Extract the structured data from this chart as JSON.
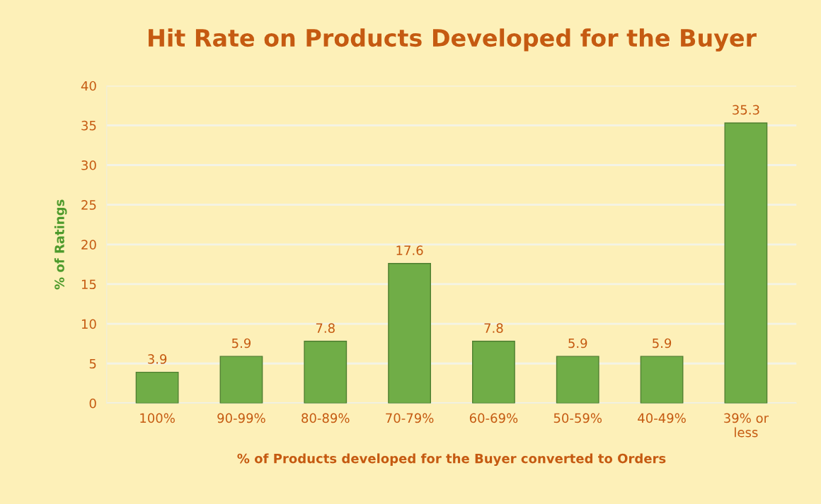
{
  "chart_data": {
    "type": "bar",
    "title": "Hit Rate on Products Developed for the Buyer",
    "xlabel": "% of Products developed for the Buyer converted to Orders",
    "ylabel": "% of Ratings",
    "categories": [
      "100%",
      "90-99%",
      "80-89%",
      "70-79%",
      "60-69%",
      "50-59%",
      "40-49%",
      "39% or\nless"
    ],
    "values": [
      3.9,
      5.9,
      7.8,
      17.6,
      7.8,
      5.9,
      5.9,
      35.3
    ],
    "color": "#70ad47",
    "ylim": [
      0,
      40
    ],
    "yticks": [
      0,
      5,
      10,
      15,
      20,
      25,
      30,
      35,
      40
    ],
    "grid": "y",
    "data_labels": true
  }
}
